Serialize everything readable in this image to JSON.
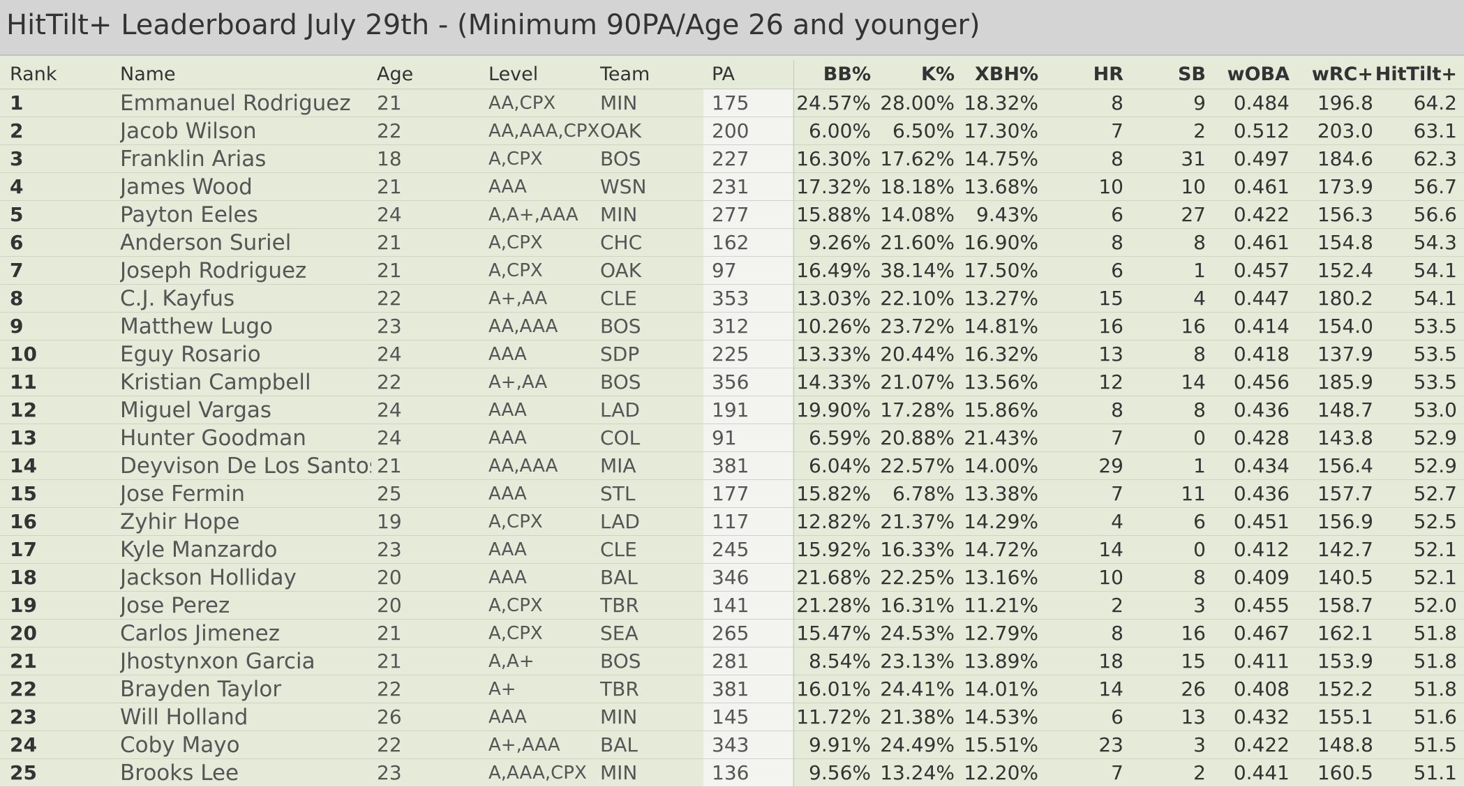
{
  "title": "HitTilt+ Leaderboard July 29th - (Minimum 90PA/Age 26 and younger)",
  "columns": {
    "rank": "Rank",
    "name": "Name",
    "age": "Age",
    "level": "Level",
    "team": "Team",
    "pa": "PA",
    "bb": "BB%",
    "k": "K%",
    "xbh": "XBH%",
    "hr": "HR",
    "sb": "SB",
    "woba": "wOBA",
    "wrc": "wRC+",
    "ht": "HitTilt+"
  },
  "rows": [
    {
      "rank": "1",
      "name": "Emmanuel Rodriguez",
      "age": "21",
      "level": "AA,CPX",
      "team": "MIN",
      "pa": "175",
      "bb": "24.57%",
      "k": "28.00%",
      "xbh": "18.32%",
      "hr": "8",
      "sb": "9",
      "woba": "0.484",
      "wrc": "196.8",
      "ht": "64.2"
    },
    {
      "rank": "2",
      "name": "Jacob Wilson",
      "age": "22",
      "level": "AA,AAA,CPX",
      "team": "OAK",
      "pa": "200",
      "bb": "6.00%",
      "k": "6.50%",
      "xbh": "17.30%",
      "hr": "7",
      "sb": "2",
      "woba": "0.512",
      "wrc": "203.0",
      "ht": "63.1"
    },
    {
      "rank": "3",
      "name": "Franklin Arias",
      "age": "18",
      "level": "A,CPX",
      "team": "BOS",
      "pa": "227",
      "bb": "16.30%",
      "k": "17.62%",
      "xbh": "14.75%",
      "hr": "8",
      "sb": "31",
      "woba": "0.497",
      "wrc": "184.6",
      "ht": "62.3"
    },
    {
      "rank": "4",
      "name": "James Wood",
      "age": "21",
      "level": "AAA",
      "team": "WSN",
      "pa": "231",
      "bb": "17.32%",
      "k": "18.18%",
      "xbh": "13.68%",
      "hr": "10",
      "sb": "10",
      "woba": "0.461",
      "wrc": "173.9",
      "ht": "56.7"
    },
    {
      "rank": "5",
      "name": "Payton Eeles",
      "age": "24",
      "level": "A,A+,AAA",
      "team": "MIN",
      "pa": "277",
      "bb": "15.88%",
      "k": "14.08%",
      "xbh": "9.43%",
      "hr": "6",
      "sb": "27",
      "woba": "0.422",
      "wrc": "156.3",
      "ht": "56.6"
    },
    {
      "rank": "6",
      "name": "Anderson Suriel",
      "age": "21",
      "level": "A,CPX",
      "team": "CHC",
      "pa": "162",
      "bb": "9.26%",
      "k": "21.60%",
      "xbh": "16.90%",
      "hr": "8",
      "sb": "8",
      "woba": "0.461",
      "wrc": "154.8",
      "ht": "54.3"
    },
    {
      "rank": "7",
      "name": "Joseph Rodriguez",
      "age": "21",
      "level": "A,CPX",
      "team": "OAK",
      "pa": "97",
      "bb": "16.49%",
      "k": "38.14%",
      "xbh": "17.50%",
      "hr": "6",
      "sb": "1",
      "woba": "0.457",
      "wrc": "152.4",
      "ht": "54.1"
    },
    {
      "rank": "8",
      "name": "C.J. Kayfus",
      "age": "22",
      "level": "A+,AA",
      "team": "CLE",
      "pa": "353",
      "bb": "13.03%",
      "k": "22.10%",
      "xbh": "13.27%",
      "hr": "15",
      "sb": "4",
      "woba": "0.447",
      "wrc": "180.2",
      "ht": "54.1"
    },
    {
      "rank": "9",
      "name": "Matthew Lugo",
      "age": "23",
      "level": "AA,AAA",
      "team": "BOS",
      "pa": "312",
      "bb": "10.26%",
      "k": "23.72%",
      "xbh": "14.81%",
      "hr": "16",
      "sb": "16",
      "woba": "0.414",
      "wrc": "154.0",
      "ht": "53.5"
    },
    {
      "rank": "10",
      "name": "Eguy Rosario",
      "age": "24",
      "level": "AAA",
      "team": "SDP",
      "pa": "225",
      "bb": "13.33%",
      "k": "20.44%",
      "xbh": "16.32%",
      "hr": "13",
      "sb": "8",
      "woba": "0.418",
      "wrc": "137.9",
      "ht": "53.5"
    },
    {
      "rank": "11",
      "name": "Kristian Campbell",
      "age": "22",
      "level": "A+,AA",
      "team": "BOS",
      "pa": "356",
      "bb": "14.33%",
      "k": "21.07%",
      "xbh": "13.56%",
      "hr": "12",
      "sb": "14",
      "woba": "0.456",
      "wrc": "185.9",
      "ht": "53.5"
    },
    {
      "rank": "12",
      "name": "Miguel Vargas",
      "age": "24",
      "level": "AAA",
      "team": "LAD",
      "pa": "191",
      "bb": "19.90%",
      "k": "17.28%",
      "xbh": "15.86%",
      "hr": "8",
      "sb": "8",
      "woba": "0.436",
      "wrc": "148.7",
      "ht": "53.0"
    },
    {
      "rank": "13",
      "name": "Hunter Goodman",
      "age": "24",
      "level": "AAA",
      "team": "COL",
      "pa": "91",
      "bb": "6.59%",
      "k": "20.88%",
      "xbh": "21.43%",
      "hr": "7",
      "sb": "0",
      "woba": "0.428",
      "wrc": "143.8",
      "ht": "52.9"
    },
    {
      "rank": "14",
      "name": "Deyvison De Los Santos",
      "age": "21",
      "level": "AA,AAA",
      "team": "MIA",
      "pa": "381",
      "bb": "6.04%",
      "k": "22.57%",
      "xbh": "14.00%",
      "hr": "29",
      "sb": "1",
      "woba": "0.434",
      "wrc": "156.4",
      "ht": "52.9"
    },
    {
      "rank": "15",
      "name": "Jose Fermin",
      "age": "25",
      "level": "AAA",
      "team": "STL",
      "pa": "177",
      "bb": "15.82%",
      "k": "6.78%",
      "xbh": "13.38%",
      "hr": "7",
      "sb": "11",
      "woba": "0.436",
      "wrc": "157.7",
      "ht": "52.7"
    },
    {
      "rank": "16",
      "name": "Zyhir Hope",
      "age": "19",
      "level": "A,CPX",
      "team": "LAD",
      "pa": "117",
      "bb": "12.82%",
      "k": "21.37%",
      "xbh": "14.29%",
      "hr": "4",
      "sb": "6",
      "woba": "0.451",
      "wrc": "156.9",
      "ht": "52.5"
    },
    {
      "rank": "17",
      "name": "Kyle Manzardo",
      "age": "23",
      "level": "AAA",
      "team": "CLE",
      "pa": "245",
      "bb": "15.92%",
      "k": "16.33%",
      "xbh": "14.72%",
      "hr": "14",
      "sb": "0",
      "woba": "0.412",
      "wrc": "142.7",
      "ht": "52.1"
    },
    {
      "rank": "18",
      "name": "Jackson Holliday",
      "age": "20",
      "level": "AAA",
      "team": "BAL",
      "pa": "346",
      "bb": "21.68%",
      "k": "22.25%",
      "xbh": "13.16%",
      "hr": "10",
      "sb": "8",
      "woba": "0.409",
      "wrc": "140.5",
      "ht": "52.1"
    },
    {
      "rank": "19",
      "name": "Jose Perez",
      "age": "20",
      "level": "A,CPX",
      "team": "TBR",
      "pa": "141",
      "bb": "21.28%",
      "k": "16.31%",
      "xbh": "11.21%",
      "hr": "2",
      "sb": "3",
      "woba": "0.455",
      "wrc": "158.7",
      "ht": "52.0"
    },
    {
      "rank": "20",
      "name": "Carlos Jimenez",
      "age": "21",
      "level": "A,CPX",
      "team": "SEA",
      "pa": "265",
      "bb": "15.47%",
      "k": "24.53%",
      "xbh": "12.79%",
      "hr": "8",
      "sb": "16",
      "woba": "0.467",
      "wrc": "162.1",
      "ht": "51.8"
    },
    {
      "rank": "21",
      "name": "Jhostynxon Garcia",
      "age": "21",
      "level": "A,A+",
      "team": "BOS",
      "pa": "281",
      "bb": "8.54%",
      "k": "23.13%",
      "xbh": "13.89%",
      "hr": "18",
      "sb": "15",
      "woba": "0.411",
      "wrc": "153.9",
      "ht": "51.8"
    },
    {
      "rank": "22",
      "name": "Brayden Taylor",
      "age": "22",
      "level": "A+",
      "team": "TBR",
      "pa": "381",
      "bb": "16.01%",
      "k": "24.41%",
      "xbh": "14.01%",
      "hr": "14",
      "sb": "26",
      "woba": "0.408",
      "wrc": "152.2",
      "ht": "51.8"
    },
    {
      "rank": "23",
      "name": "Will Holland",
      "age": "26",
      "level": "AAA",
      "team": "MIN",
      "pa": "145",
      "bb": "11.72%",
      "k": "21.38%",
      "xbh": "14.53%",
      "hr": "6",
      "sb": "13",
      "woba": "0.432",
      "wrc": "155.1",
      "ht": "51.6"
    },
    {
      "rank": "24",
      "name": "Coby Mayo",
      "age": "22",
      "level": "A+,AAA",
      "team": "BAL",
      "pa": "343",
      "bb": "9.91%",
      "k": "24.49%",
      "xbh": "15.51%",
      "hr": "23",
      "sb": "3",
      "woba": "0.422",
      "wrc": "148.8",
      "ht": "51.5"
    },
    {
      "rank": "25",
      "name": "Brooks Lee",
      "age": "23",
      "level": "A,AAA,CPX",
      "team": "MIN",
      "pa": "136",
      "bb": "9.56%",
      "k": "13.24%",
      "xbh": "12.20%",
      "hr": "7",
      "sb": "2",
      "woba": "0.441",
      "wrc": "160.5",
      "ht": "51.1"
    }
  ]
}
